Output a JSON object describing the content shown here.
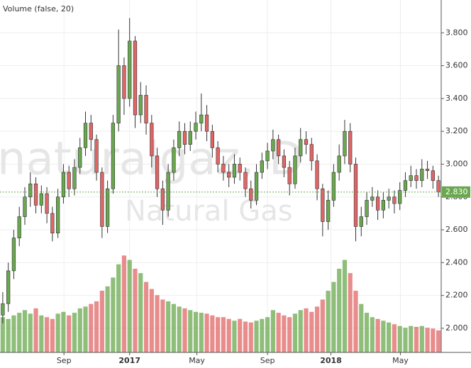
{
  "chart_data": {
    "type": "candlestick",
    "legend_text": "Volume (false, 20)",
    "watermark": {
      "symbol": "naturalgaz, D",
      "name": "Natural Gas"
    },
    "up_color": "#6aa84f",
    "down_color": "#e06666",
    "ylim": [
      1.853,
      4.0
    ],
    "yticks": [
      {
        "value": 2.0,
        "label": "2.000"
      },
      {
        "value": 2.2,
        "label": "2.200"
      },
      {
        "value": 2.4,
        "label": "2.400"
      },
      {
        "value": 2.6,
        "label": "2.600"
      },
      {
        "value": 2.8,
        "label": "2.800"
      },
      {
        "value": 3.0,
        "label": "3.000"
      },
      {
        "value": 3.2,
        "label": "3.200"
      },
      {
        "value": 3.4,
        "label": "3.400"
      },
      {
        "value": 3.6,
        "label": "3.600"
      },
      {
        "value": 3.8,
        "label": "3.800"
      }
    ],
    "xlim": [
      0,
      80
    ],
    "xticks": [
      {
        "value": 11.6,
        "label": "Sep"
      },
      {
        "value": 23.5,
        "label": "2017"
      },
      {
        "value": 35.7,
        "label": "May"
      },
      {
        "value": 48.5,
        "label": "Sep"
      },
      {
        "value": 60,
        "label": "2018"
      },
      {
        "value": 72.6,
        "label": "May"
      }
    ],
    "last_price": {
      "value": 2.83,
      "label": "2.830"
    },
    "vlim": [
      0,
      400
    ],
    "ohlc": [
      [
        2.08,
        2.22,
        2.03,
        2.15
      ],
      [
        2.15,
        2.4,
        2.1,
        2.35
      ],
      [
        2.35,
        2.6,
        2.3,
        2.55
      ],
      [
        2.55,
        2.74,
        2.5,
        2.68
      ],
      [
        2.68,
        2.86,
        2.63,
        2.8
      ],
      [
        2.8,
        2.95,
        2.74,
        2.88
      ],
      [
        2.88,
        2.92,
        2.7,
        2.75
      ],
      [
        2.75,
        2.87,
        2.7,
        2.82
      ],
      [
        2.82,
        2.86,
        2.64,
        2.7
      ],
      [
        2.7,
        2.74,
        2.53,
        2.58
      ],
      [
        2.58,
        2.85,
        2.55,
        2.8
      ],
      [
        2.8,
        3.0,
        2.76,
        2.95
      ],
      [
        2.95,
        2.99,
        2.8,
        2.85
      ],
      [
        2.85,
        3.03,
        2.81,
        2.98
      ],
      [
        2.98,
        3.16,
        2.94,
        3.1
      ],
      [
        3.1,
        3.32,
        3.05,
        3.25
      ],
      [
        3.25,
        3.3,
        3.08,
        3.15
      ],
      [
        3.15,
        3.18,
        2.9,
        2.95
      ],
      [
        2.95,
        2.98,
        2.55,
        2.62
      ],
      [
        2.62,
        2.9,
        2.58,
        2.85
      ],
      [
        2.85,
        3.3,
        2.82,
        3.25
      ],
      [
        3.25,
        3.82,
        3.2,
        3.6
      ],
      [
        3.6,
        3.65,
        3.3,
        3.4
      ],
      [
        3.4,
        3.89,
        3.35,
        3.75
      ],
      [
        3.75,
        3.78,
        3.22,
        3.3
      ],
      [
        3.3,
        3.5,
        3.25,
        3.42
      ],
      [
        3.42,
        3.48,
        3.18,
        3.25
      ],
      [
        3.25,
        3.3,
        2.98,
        3.05
      ],
      [
        3.05,
        3.1,
        2.8,
        2.85
      ],
      [
        2.85,
        2.9,
        2.63,
        2.72
      ],
      [
        2.72,
        3.0,
        2.68,
        2.95
      ],
      [
        2.95,
        3.15,
        2.9,
        3.1
      ],
      [
        3.1,
        3.26,
        3.05,
        3.2
      ],
      [
        3.2,
        3.25,
        3.06,
        3.12
      ],
      [
        3.12,
        3.26,
        3.08,
        3.2
      ],
      [
        3.2,
        3.32,
        3.15,
        3.25
      ],
      [
        3.25,
        3.43,
        3.2,
        3.3
      ],
      [
        3.3,
        3.36,
        3.14,
        3.2
      ],
      [
        3.2,
        3.24,
        3.04,
        3.1
      ],
      [
        3.1,
        3.14,
        2.95,
        3.0
      ],
      [
        3.0,
        3.05,
        2.9,
        2.95
      ],
      [
        2.95,
        3.0,
        2.86,
        2.92
      ],
      [
        2.92,
        3.06,
        2.88,
        3.0
      ],
      [
        3.0,
        3.04,
        2.9,
        2.95
      ],
      [
        2.95,
        2.98,
        2.8,
        2.85
      ],
      [
        2.85,
        2.9,
        2.73,
        2.78
      ],
      [
        2.78,
        3.0,
        2.75,
        2.95
      ],
      [
        2.95,
        3.07,
        2.91,
        3.02
      ],
      [
        3.02,
        3.13,
        2.97,
        3.08
      ],
      [
        3.08,
        3.21,
        3.03,
        3.15
      ],
      [
        3.15,
        3.18,
        3.0,
        3.05
      ],
      [
        3.05,
        3.09,
        2.92,
        2.98
      ],
      [
        2.98,
        3.02,
        2.81,
        2.88
      ],
      [
        2.88,
        3.1,
        2.85,
        3.05
      ],
      [
        3.05,
        3.22,
        3.01,
        3.15
      ],
      [
        3.15,
        3.2,
        3.06,
        3.12
      ],
      [
        3.12,
        3.16,
        2.96,
        3.02
      ],
      [
        3.02,
        3.06,
        2.78,
        2.85
      ],
      [
        2.85,
        2.88,
        2.56,
        2.65
      ],
      [
        2.65,
        2.84,
        2.6,
        2.78
      ],
      [
        2.78,
        3.0,
        2.74,
        2.95
      ],
      [
        2.95,
        3.12,
        2.9,
        3.05
      ],
      [
        3.05,
        3.27,
        3.0,
        3.2
      ],
      [
        3.2,
        3.25,
        2.95,
        3.0
      ],
      [
        3.0,
        3.04,
        2.53,
        2.62
      ],
      [
        2.62,
        2.74,
        2.56,
        2.68
      ],
      [
        2.68,
        2.83,
        2.63,
        2.78
      ],
      [
        2.78,
        2.86,
        2.74,
        2.8
      ],
      [
        2.8,
        2.84,
        2.66,
        2.72
      ],
      [
        2.72,
        2.83,
        2.67,
        2.78
      ],
      [
        2.78,
        2.85,
        2.73,
        2.8
      ],
      [
        2.8,
        2.84,
        2.7,
        2.76
      ],
      [
        2.76,
        2.89,
        2.72,
        2.84
      ],
      [
        2.84,
        2.95,
        2.8,
        2.9
      ],
      [
        2.9,
        2.99,
        2.86,
        2.93
      ],
      [
        2.93,
        2.97,
        2.85,
        2.9
      ],
      [
        2.9,
        3.03,
        2.86,
        2.97
      ],
      [
        2.97,
        3.02,
        2.91,
        2.96
      ],
      [
        2.96,
        2.99,
        2.85,
        2.9
      ],
      [
        2.9,
        2.93,
        2.8,
        2.83
      ]
    ],
    "volume": [
      40,
      38,
      42,
      45,
      48,
      44,
      50,
      42,
      40,
      38,
      44,
      46,
      42,
      45,
      50,
      52,
      55,
      58,
      70,
      75,
      85,
      100,
      110,
      105,
      95,
      90,
      80,
      72,
      65,
      60,
      58,
      55,
      52,
      50,
      48,
      46,
      45,
      44,
      42,
      40,
      40,
      38,
      36,
      38,
      35,
      34,
      36,
      38,
      40,
      48,
      45,
      42,
      40,
      44,
      48,
      50,
      46,
      52,
      60,
      70,
      80,
      95,
      105,
      90,
      70,
      55,
      45,
      40,
      38,
      36,
      34,
      32,
      30,
      28,
      30,
      29,
      30,
      28,
      27,
      25
    ]
  }
}
